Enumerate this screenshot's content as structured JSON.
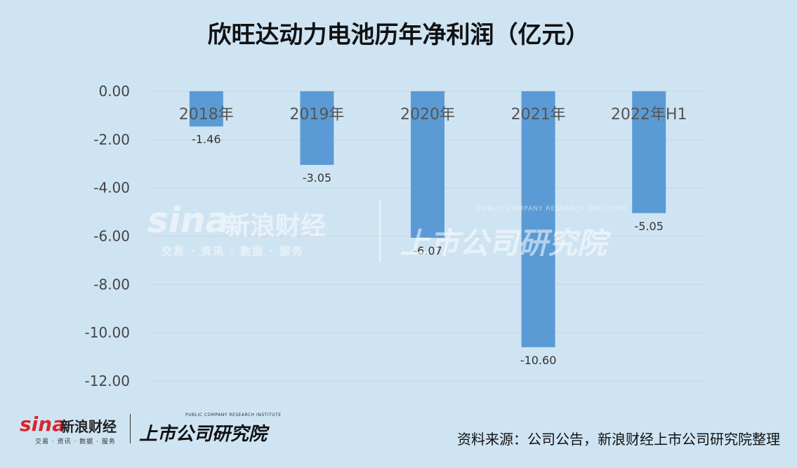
{
  "chart_data": {
    "type": "bar",
    "title": "欣旺达动力电池历年净利润（亿元）",
    "categories": [
      "2018年",
      "2019年",
      "2020年",
      "2021年",
      "2022年H1"
    ],
    "values": [
      -1.46,
      -3.05,
      -6.07,
      -10.6,
      -5.05
    ],
    "value_labels": [
      "-1.46",
      "-3.05",
      "-6.07",
      "-10.60",
      "-5.05"
    ],
    "yticks": [
      "0.00",
      "-2.00",
      "-4.00",
      "-6.00",
      "-8.00",
      "-10.00",
      "-12.00"
    ],
    "ylim": [
      -12,
      0
    ],
    "grid": true,
    "legend": false,
    "bar_color": "#5b9bd5",
    "xlabel": "",
    "ylabel": ""
  },
  "watermark": {
    "logo_text": "sina",
    "brand_cn": "新浪财经",
    "sub": "交易 · 资讯 · 数据 · 服务",
    "institute_cn": "上市公司研究院",
    "institute_en": "PUBLIC COMPANY RESEARCH INSTITUTE"
  },
  "footer": {
    "logo_text": "sina",
    "brand_cn": "新浪财经",
    "sub": "交易 · 资讯 · 数据 · 服务",
    "institute_cn": "上市公司研究院",
    "institute_en": "PUBLIC COMPANY RESEARCH INSTITUTE",
    "source": "资料来源：公司公告，新浪财经上市公司研究院整理"
  },
  "colors": {
    "background": "#cfe4f3",
    "bar": "#5b9bd5",
    "grid": "#c9d3dc"
  }
}
